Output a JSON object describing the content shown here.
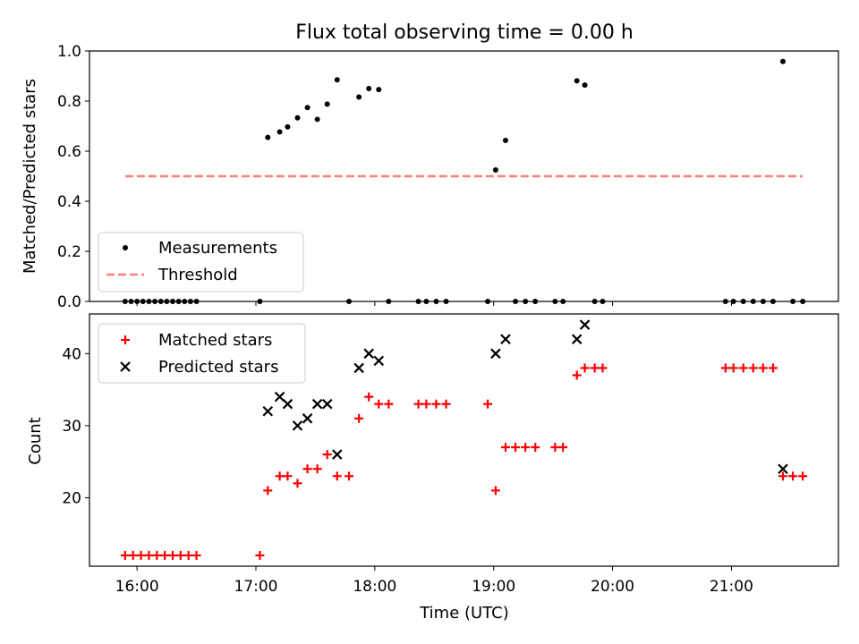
{
  "chart_data": [
    {
      "type": "scatter",
      "title": "Flux total observing time = 0.00 h",
      "xlabel": "",
      "ylabel": "Matched/Predicted stars",
      "ylim": [
        0.0,
        1.0
      ],
      "yticks": [
        "0.0",
        "0.2",
        "0.4",
        "0.6",
        "0.8",
        "1.0"
      ],
      "xlim": [
        "15:36",
        "21:54"
      ],
      "grid": false,
      "legend_position": "lower-left",
      "series": [
        {
          "name": "Measurements",
          "color": "#000000",
          "marker": "dot",
          "points": [
            [
              "15:54",
              0
            ],
            [
              "15:57",
              0
            ],
            [
              "16:00",
              0
            ],
            [
              "16:03",
              0
            ],
            [
              "16:06",
              0
            ],
            [
              "16:09",
              0
            ],
            [
              "16:12",
              0
            ],
            [
              "16:15",
              0
            ],
            [
              "16:18",
              0
            ],
            [
              "16:21",
              0
            ],
            [
              "16:24",
              0
            ],
            [
              "16:27",
              0
            ],
            [
              "16:30",
              0
            ],
            [
              "17:02",
              0
            ],
            [
              "17:06",
              0.655
            ],
            [
              "17:12",
              0.677
            ],
            [
              "17:16",
              0.697
            ],
            [
              "17:21",
              0.733
            ],
            [
              "17:26",
              0.774
            ],
            [
              "17:31",
              0.727
            ],
            [
              "17:36",
              0.788
            ],
            [
              "17:41",
              0.885
            ],
            [
              "17:47",
              0
            ],
            [
              "17:52",
              0.816
            ],
            [
              "17:57",
              0.85
            ],
            [
              "18:02",
              0.846
            ],
            [
              "18:07",
              0
            ],
            [
              "18:22",
              0
            ],
            [
              "18:26",
              0
            ],
            [
              "18:31",
              0
            ],
            [
              "18:36",
              0
            ],
            [
              "18:57",
              0
            ],
            [
              "19:01",
              0.525
            ],
            [
              "19:06",
              0.643
            ],
            [
              "19:11",
              0
            ],
            [
              "19:16",
              0
            ],
            [
              "19:21",
              0
            ],
            [
              "19:31",
              0
            ],
            [
              "19:35",
              0
            ],
            [
              "19:42",
              0.881
            ],
            [
              "19:46",
              0.864
            ],
            [
              "19:51",
              0
            ],
            [
              "19:55",
              0
            ],
            [
              "20:57",
              0
            ],
            [
              "21:01",
              0
            ],
            [
              "21:06",
              0
            ],
            [
              "21:11",
              0
            ],
            [
              "21:16",
              0
            ],
            [
              "21:21",
              0
            ],
            [
              "21:26",
              0.958
            ],
            [
              "21:31",
              0
            ],
            [
              "21:36",
              0
            ]
          ]
        },
        {
          "name": "Threshold",
          "color": "#ff7f7f",
          "style": "dashed",
          "points": [
            [
              "15:54",
              0.5
            ],
            [
              "21:36",
              0.5
            ]
          ]
        }
      ]
    },
    {
      "type": "scatter",
      "title": "",
      "xlabel": "Time (UTC)",
      "ylabel": "Count",
      "ylim": [
        10.5,
        45.5
      ],
      "yticks": [
        "20",
        "30",
        "40"
      ],
      "xticks": [
        "16:00",
        "17:00",
        "18:00",
        "19:00",
        "20:00",
        "21:00"
      ],
      "grid": false,
      "legend_position": "upper-left",
      "series": [
        {
          "name": "Matched stars",
          "color": "#ff0000",
          "marker": "plus",
          "points": [
            [
              "15:54",
              12
            ],
            [
              "15:58",
              12
            ],
            [
              "16:02",
              12
            ],
            [
              "16:06",
              12
            ],
            [
              "16:10",
              12
            ],
            [
              "16:14",
              12
            ],
            [
              "16:18",
              12
            ],
            [
              "16:22",
              12
            ],
            [
              "16:26",
              12
            ],
            [
              "16:30",
              12
            ],
            [
              "17:02",
              12
            ],
            [
              "17:06",
              21
            ],
            [
              "17:12",
              23
            ],
            [
              "17:16",
              23
            ],
            [
              "17:21",
              22
            ],
            [
              "17:26",
              24
            ],
            [
              "17:31",
              24
            ],
            [
              "17:36",
              26
            ],
            [
              "17:41",
              23
            ],
            [
              "17:47",
              23
            ],
            [
              "17:52",
              31
            ],
            [
              "17:57",
              34
            ],
            [
              "18:02",
              33
            ],
            [
              "18:07",
              33
            ],
            [
              "18:22",
              33
            ],
            [
              "18:26",
              33
            ],
            [
              "18:31",
              33
            ],
            [
              "18:36",
              33
            ],
            [
              "18:57",
              33
            ],
            [
              "19:01",
              21
            ],
            [
              "19:06",
              27
            ],
            [
              "19:11",
              27
            ],
            [
              "19:16",
              27
            ],
            [
              "19:21",
              27
            ],
            [
              "19:31",
              27
            ],
            [
              "19:35",
              27
            ],
            [
              "19:42",
              37
            ],
            [
              "19:46",
              38
            ],
            [
              "19:51",
              38
            ],
            [
              "19:55",
              38
            ],
            [
              "20:57",
              38
            ],
            [
              "21:01",
              38
            ],
            [
              "21:06",
              38
            ],
            [
              "21:11",
              38
            ],
            [
              "21:16",
              38
            ],
            [
              "21:21",
              38
            ],
            [
              "21:26",
              23
            ],
            [
              "21:31",
              23
            ],
            [
              "21:36",
              23
            ]
          ]
        },
        {
          "name": "Predicted stars",
          "color": "#000000",
          "marker": "x",
          "points": [
            [
              "17:06",
              32
            ],
            [
              "17:12",
              34
            ],
            [
              "17:16",
              33
            ],
            [
              "17:21",
              30
            ],
            [
              "17:26",
              31
            ],
            [
              "17:31",
              33
            ],
            [
              "17:36",
              33
            ],
            [
              "17:41",
              26
            ],
            [
              "17:52",
              38
            ],
            [
              "17:57",
              40
            ],
            [
              "18:02",
              39
            ],
            [
              "19:01",
              40
            ],
            [
              "19:06",
              42
            ],
            [
              "19:42",
              42
            ],
            [
              "19:46",
              44
            ],
            [
              "21:26",
              24
            ]
          ]
        }
      ]
    }
  ]
}
